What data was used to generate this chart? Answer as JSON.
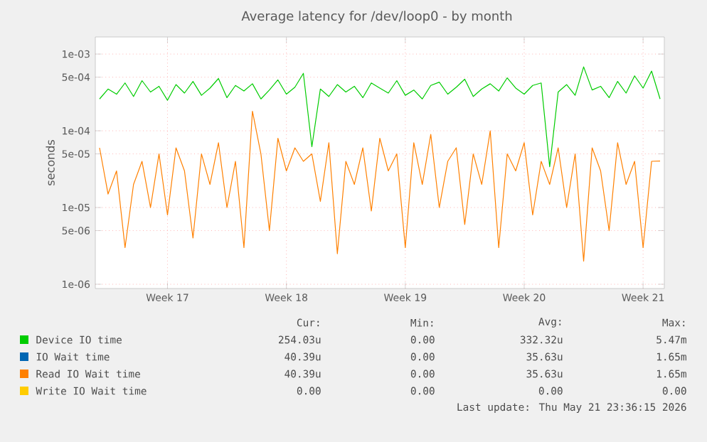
{
  "chart_data": {
    "type": "line",
    "title": "Average latency for /dev/loop0 - by month",
    "ylabel": "seconds",
    "log": "y",
    "grid": true,
    "legend": "bottom",
    "marker": "none",
    "line_style": "solid",
    "ylim": [
      8.8e-07,
      0.00167
    ],
    "yticks": [
      {
        "value": 1e-06,
        "label": "1e-06"
      },
      {
        "value": 5e-06,
        "label": "5e-06"
      },
      {
        "value": 1e-05,
        "label": "1e-05"
      },
      {
        "value": 5e-05,
        "label": "5e-05"
      },
      {
        "value": 0.0001,
        "label": "1e-04"
      },
      {
        "value": 0.0005,
        "label": "5e-04"
      },
      {
        "value": 0.001,
        "label": "1e-03"
      }
    ],
    "categories": [
      null,
      null,
      null,
      null,
      null,
      null,
      null,
      null,
      "Week 17",
      null,
      null,
      null,
      null,
      null,
      null,
      null,
      null,
      null,
      null,
      null,
      null,
      null,
      "Week 18",
      null,
      null,
      null,
      null,
      null,
      null,
      null,
      null,
      null,
      null,
      null,
      null,
      null,
      "Week 19",
      null,
      null,
      null,
      null,
      null,
      null,
      null,
      null,
      null,
      null,
      null,
      null,
      null,
      "Week 20",
      null,
      null,
      null,
      null,
      null,
      null,
      null,
      null,
      null,
      null,
      null,
      null,
      null,
      "Week 21",
      null,
      null
    ],
    "series": [
      {
        "name": "Device IO time",
        "color": "#00cc00",
        "values": [
          0.00026,
          0.00035,
          0.0003,
          0.00042,
          0.00028,
          0.00045,
          0.00032,
          0.00038,
          0.00025,
          0.0004,
          0.00031,
          0.00044,
          0.00029,
          0.00036,
          0.00048,
          0.00027,
          0.00039,
          0.00033,
          0.00041,
          0.00026,
          0.00034,
          0.00046,
          0.0003,
          0.00037,
          0.00056,
          6.2e-05,
          0.00035,
          0.00028,
          0.0004,
          0.00032,
          0.00038,
          0.00027,
          0.00042,
          0.00036,
          0.00031,
          0.00045,
          0.00029,
          0.00034,
          0.00026,
          0.00039,
          0.00043,
          0.0003,
          0.00037,
          0.00047,
          0.00028,
          0.00035,
          0.00041,
          0.00033,
          0.00049,
          0.00036,
          0.0003,
          0.00039,
          0.00042,
          3.4e-05,
          0.00032,
          0.0004,
          0.00029,
          0.00068,
          0.00034,
          0.00038,
          0.00027,
          0.00044,
          0.00031,
          0.00052,
          0.00036,
          0.0006,
          0.00026
        ]
      },
      {
        "name": "IO Wait time",
        "color": "#0066b3",
        "values": [
          null,
          null,
          null,
          null,
          null,
          null,
          null,
          null,
          null,
          null,
          null,
          null,
          null,
          null,
          null,
          null,
          null,
          null,
          null,
          null,
          null,
          null,
          null,
          null,
          null,
          null,
          null,
          null,
          null,
          null,
          null,
          null,
          null,
          null,
          null,
          null,
          null,
          null,
          null,
          null,
          null,
          null,
          null,
          null,
          null,
          null,
          null,
          null,
          null,
          null,
          null,
          null,
          null,
          null,
          null,
          null,
          null,
          null,
          null,
          null,
          null,
          null,
          null,
          null,
          null,
          null,
          null
        ]
      },
      {
        "name": "Read IO Wait time",
        "color": "#ff8000",
        "values": [
          6e-05,
          1.5e-05,
          3e-05,
          3e-06,
          2e-05,
          4e-05,
          1e-05,
          5e-05,
          8e-06,
          6e-05,
          3e-05,
          4e-06,
          5e-05,
          2e-05,
          7e-05,
          1e-05,
          4e-05,
          3e-06,
          0.00018,
          5e-05,
          5e-06,
          8e-05,
          3e-05,
          6e-05,
          4e-05,
          5e-05,
          1.2e-05,
          7e-05,
          2.5e-06,
          4e-05,
          2e-05,
          6e-05,
          9e-06,
          8e-05,
          3e-05,
          5e-05,
          3e-06,
          7e-05,
          2e-05,
          9e-05,
          1e-05,
          4e-05,
          6e-05,
          6e-06,
          5e-05,
          2e-05,
          0.0001,
          3e-06,
          5e-05,
          3e-05,
          7e-05,
          8e-06,
          4e-05,
          2e-05,
          6e-05,
          1e-05,
          5e-05,
          2e-06,
          6e-05,
          3e-05,
          5e-06,
          7e-05,
          2e-05,
          4e-05,
          3e-06,
          4e-05,
          4.04e-05
        ]
      },
      {
        "name": "Write IO Wait time",
        "color": "#ffcc00",
        "values": [
          null,
          null,
          null,
          null,
          null,
          null,
          null,
          null,
          null,
          null,
          null,
          null,
          null,
          null,
          null,
          null,
          null,
          null,
          null,
          null,
          null,
          null,
          null,
          null,
          null,
          null,
          null,
          null,
          null,
          null,
          null,
          null,
          null,
          null,
          null,
          null,
          null,
          null,
          null,
          null,
          null,
          null,
          null,
          null,
          null,
          null,
          null,
          null,
          null,
          null,
          null,
          null,
          null,
          null,
          null,
          null,
          null,
          null,
          null,
          null,
          null,
          null,
          null,
          null,
          null,
          null,
          null
        ]
      }
    ],
    "annotations": [
      "Cur:",
      "Min:",
      "Avg:",
      "Max:",
      "254.03u",
      "0.00",
      "332.32u",
      "5.47m",
      "40.39u",
      "0.00",
      "35.63u",
      "1.65m",
      "40.39u",
      "0.00",
      "35.63u",
      "1.65m",
      "0.00",
      "0.00",
      "0.00",
      "0.00",
      "Last update: Thu May 21 23:36:15 2026"
    ]
  }
}
